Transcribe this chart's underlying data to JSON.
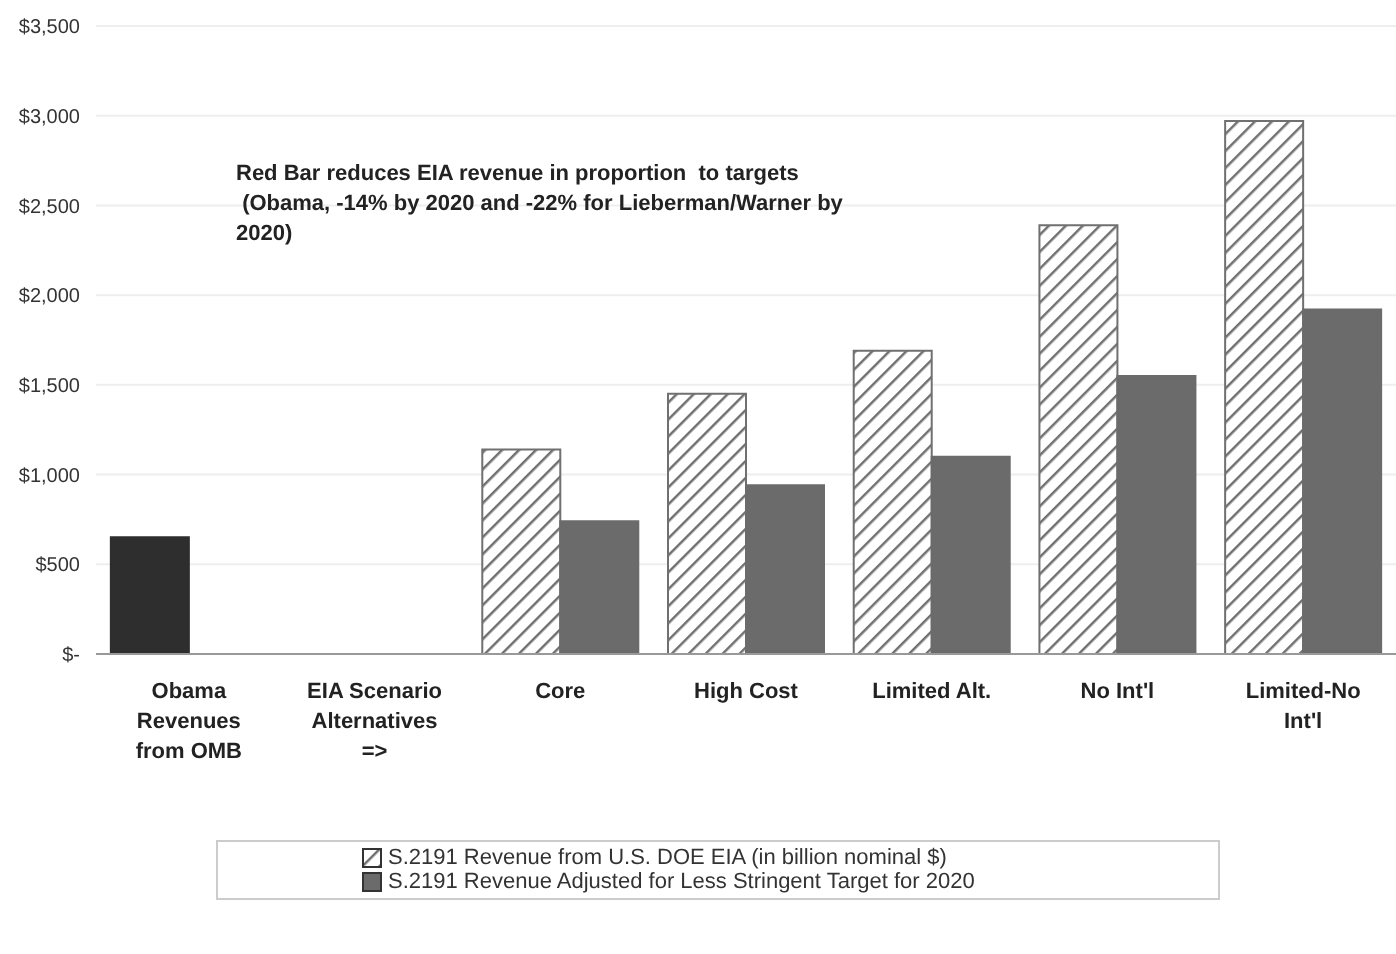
{
  "chart_data": {
    "type": "bar",
    "categories": [
      "Obama Revenues from OMB",
      "EIA Scenario Alternatives =>",
      "Core",
      "High Cost",
      "Limited Alt.",
      "No Int'l",
      "Limited-No Int'l"
    ],
    "series": [
      {
        "name": "S.2191 Revenue from U.S. DOE EIA (in billion nominal $)",
        "color": "#707070",
        "colors": [
          "#2e2e2e",
          "#707070",
          "#707070",
          "#707070",
          "#707070",
          "#707070",
          "#707070"
        ],
        "values": [
          650,
          null,
          1140,
          1450,
          1690,
          2390,
          2970
        ]
      },
      {
        "name": "S.2191 Revenue Adjusted for Less Stringent Target for 2020",
        "color": "#6b6b6b",
        "values": [
          null,
          null,
          740,
          940,
          1100,
          1550,
          1920
        ]
      }
    ],
    "ylim": [
      0,
      3500
    ],
    "yticks": [
      {
        "value": 0,
        "label": "$-"
      },
      {
        "value": 500,
        "label": "$500"
      },
      {
        "value": 1000,
        "label": "$1,000"
      },
      {
        "value": 1500,
        "label": "$1,500"
      },
      {
        "value": 2000,
        "label": "$2,000"
      },
      {
        "value": 2500,
        "label": "$2,500"
      },
      {
        "value": 3000,
        "label": "$3,000"
      },
      {
        "value": 3500,
        "label": "$3,500"
      }
    ],
    "grid": "y",
    "legend": "bottom",
    "annotations": [
      "Red Bar reduces EIA revenue in proportion  to targets\n (Obama, -14% by 2020 and -22% for Lieberman/Warner by 2020)"
    ]
  }
}
